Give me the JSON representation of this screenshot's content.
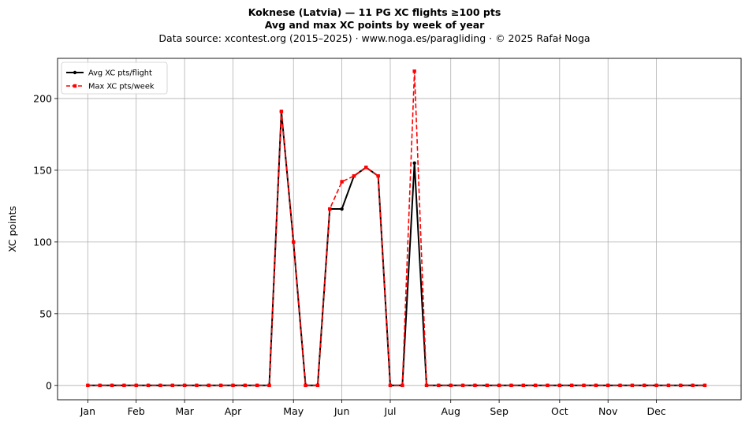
{
  "header": {
    "title_line1": "Koknese (Latvia)  —  11 PG XC flights ≥100 pts",
    "title_line2": "Avg and max XC points by week of year",
    "subtitle": "Data source: xcontest.org (2015–2025)  ·  www.noga.es/paragliding  ·  © 2025 Rafał Noga"
  },
  "chart_data": {
    "type": "line",
    "title": "Koknese (Latvia)  —  11 PG XC flights ≥100 pts",
    "subtitle": "Avg and max XC points by week of year",
    "xlabel": "",
    "ylabel": "XC points",
    "x": [
      1,
      2,
      3,
      4,
      5,
      6,
      7,
      8,
      9,
      10,
      11,
      12,
      13,
      14,
      15,
      16,
      17,
      18,
      19,
      20,
      21,
      22,
      23,
      24,
      25,
      26,
      27,
      28,
      29,
      30,
      31,
      32,
      33,
      34,
      35,
      36,
      37,
      38,
      39,
      40,
      41,
      42,
      43,
      44,
      45,
      46,
      47,
      48,
      49,
      50,
      51,
      52
    ],
    "x_ticks": [
      {
        "label": "Jan",
        "week": 1
      },
      {
        "label": "Feb",
        "week": 5
      },
      {
        "label": "Mar",
        "week": 9
      },
      {
        "label": "Apr",
        "week": 13
      },
      {
        "label": "May",
        "week": 18
      },
      {
        "label": "Jun",
        "week": 22
      },
      {
        "label": "Jul",
        "week": 26
      },
      {
        "label": "Aug",
        "week": 31
      },
      {
        "label": "Sep",
        "week": 35
      },
      {
        "label": "Oct",
        "week": 40
      },
      {
        "label": "Nov",
        "week": 44
      },
      {
        "label": "Dec",
        "week": 48
      }
    ],
    "xlim": [
      -1.5,
      55
    ],
    "ylim": [
      -10,
      228
    ],
    "y_ticks": [
      0,
      50,
      100,
      150,
      200
    ],
    "grid": true,
    "legend_position": "top-left",
    "series": [
      {
        "name": "Avg XC pts/flight",
        "color": "#000000",
        "style": "solid",
        "marker": "circle",
        "values": [
          0,
          0,
          0,
          0,
          0,
          0,
          0,
          0,
          0,
          0,
          0,
          0,
          0,
          0,
          0,
          0,
          191,
          100,
          0,
          0,
          123,
          123,
          146,
          152,
          146,
          0,
          0,
          155,
          0,
          0,
          0,
          0,
          0,
          0,
          0,
          0,
          0,
          0,
          0,
          0,
          0,
          0,
          0,
          0,
          0,
          0,
          0,
          0,
          0,
          0,
          0,
          0
        ]
      },
      {
        "name": "Max XC pts/week",
        "color": "#ff0000",
        "style": "dashed",
        "marker": "square",
        "values": [
          0,
          0,
          0,
          0,
          0,
          0,
          0,
          0,
          0,
          0,
          0,
          0,
          0,
          0,
          0,
          0,
          191,
          100,
          0,
          0,
          123,
          142,
          146,
          152,
          146,
          0,
          0,
          219,
          0,
          0,
          0,
          0,
          0,
          0,
          0,
          0,
          0,
          0,
          0,
          0,
          0,
          0,
          0,
          0,
          0,
          0,
          0,
          0,
          0,
          0,
          0,
          0
        ]
      }
    ]
  }
}
